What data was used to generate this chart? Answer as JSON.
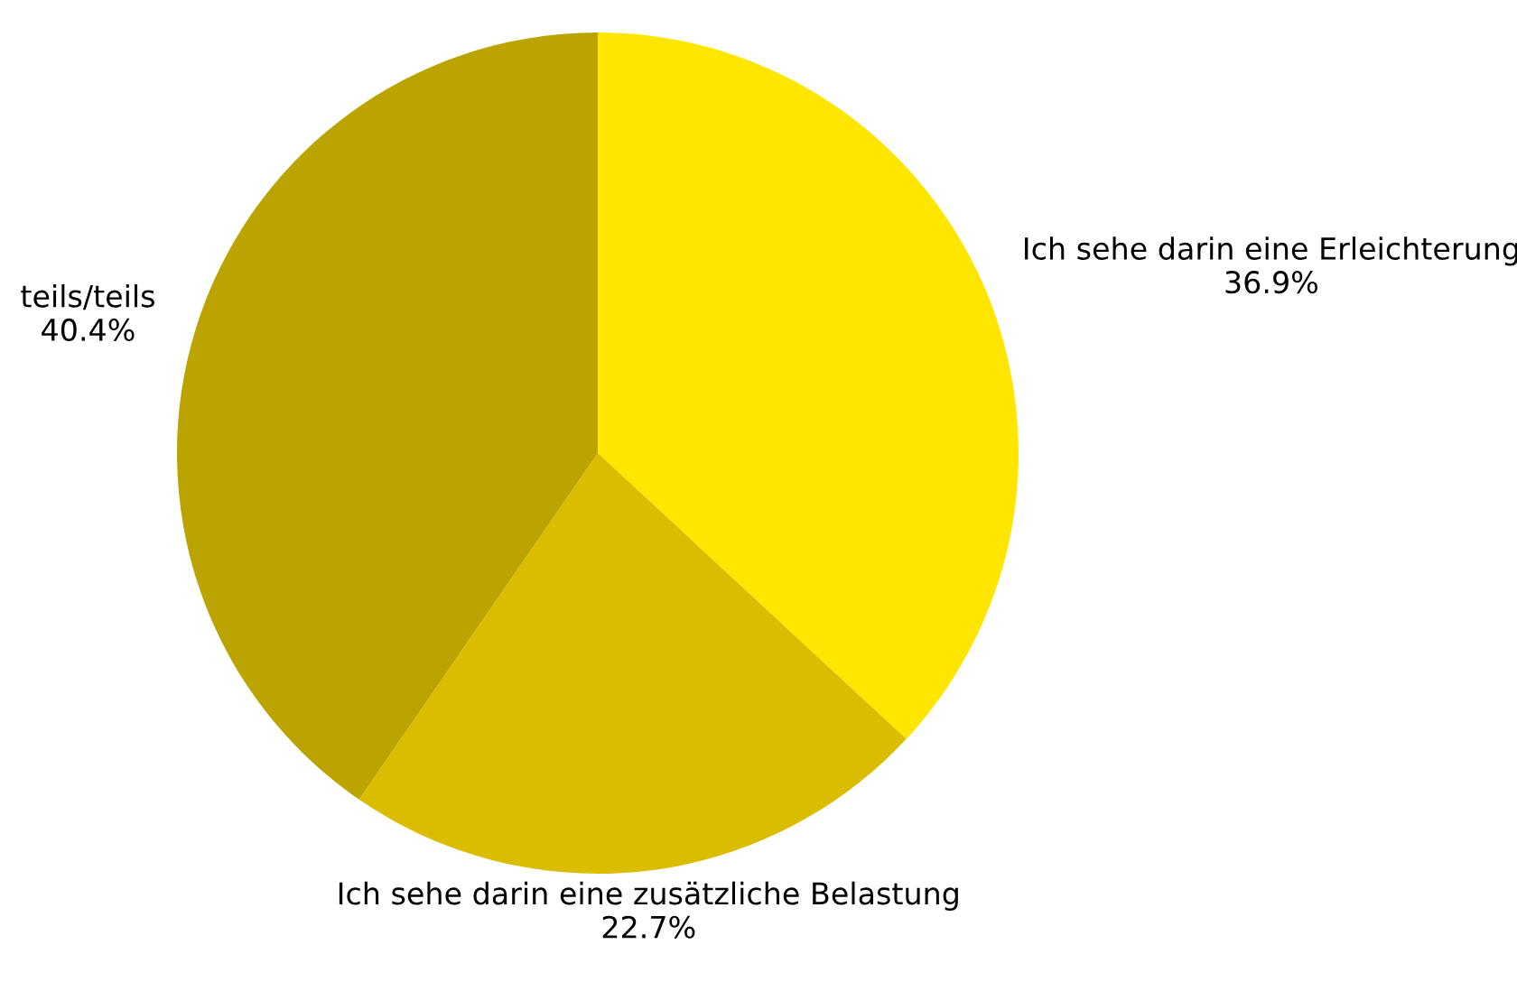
{
  "chart_data": {
    "type": "pie",
    "categories": [
      "Ich sehe darin eine Erleichterung",
      "Ich sehe darin eine zusätzliche Belastung",
      "teils/teils"
    ],
    "values": [
      36.9,
      22.7,
      40.4
    ],
    "colors": [
      "#ffe600",
      "#dbbd00",
      "#bba300"
    ],
    "value_labels": [
      "36.9%",
      "22.7%",
      "40.4%"
    ],
    "legend": false
  }
}
